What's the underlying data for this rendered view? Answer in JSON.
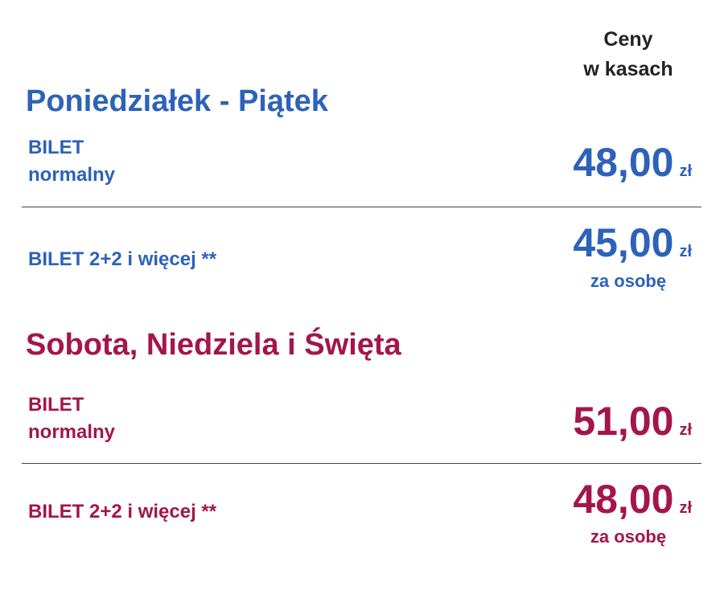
{
  "header": {
    "lines": [
      "Ceny",
      "w kasach"
    ]
  },
  "sections": [
    {
      "title": "Poniedziałek - Piątek",
      "rows": [
        {
          "label": [
            "BILET",
            "normalny"
          ],
          "price": "48,00",
          "currency": "zł"
        },
        {
          "label": [
            "BILET 2+2 i więcej **"
          ],
          "price": "45,00",
          "currency": "zł",
          "note": "za osobę"
        }
      ]
    },
    {
      "title": "Sobota, Niedziela i Święta",
      "rows": [
        {
          "label": [
            "BILET",
            "normalny"
          ],
          "price": "51,00",
          "currency": "zł"
        },
        {
          "label": [
            "BILET 2+2 i więcej **"
          ],
          "price": "48,00",
          "currency": "zł",
          "note": "za osobę"
        }
      ]
    }
  ]
}
